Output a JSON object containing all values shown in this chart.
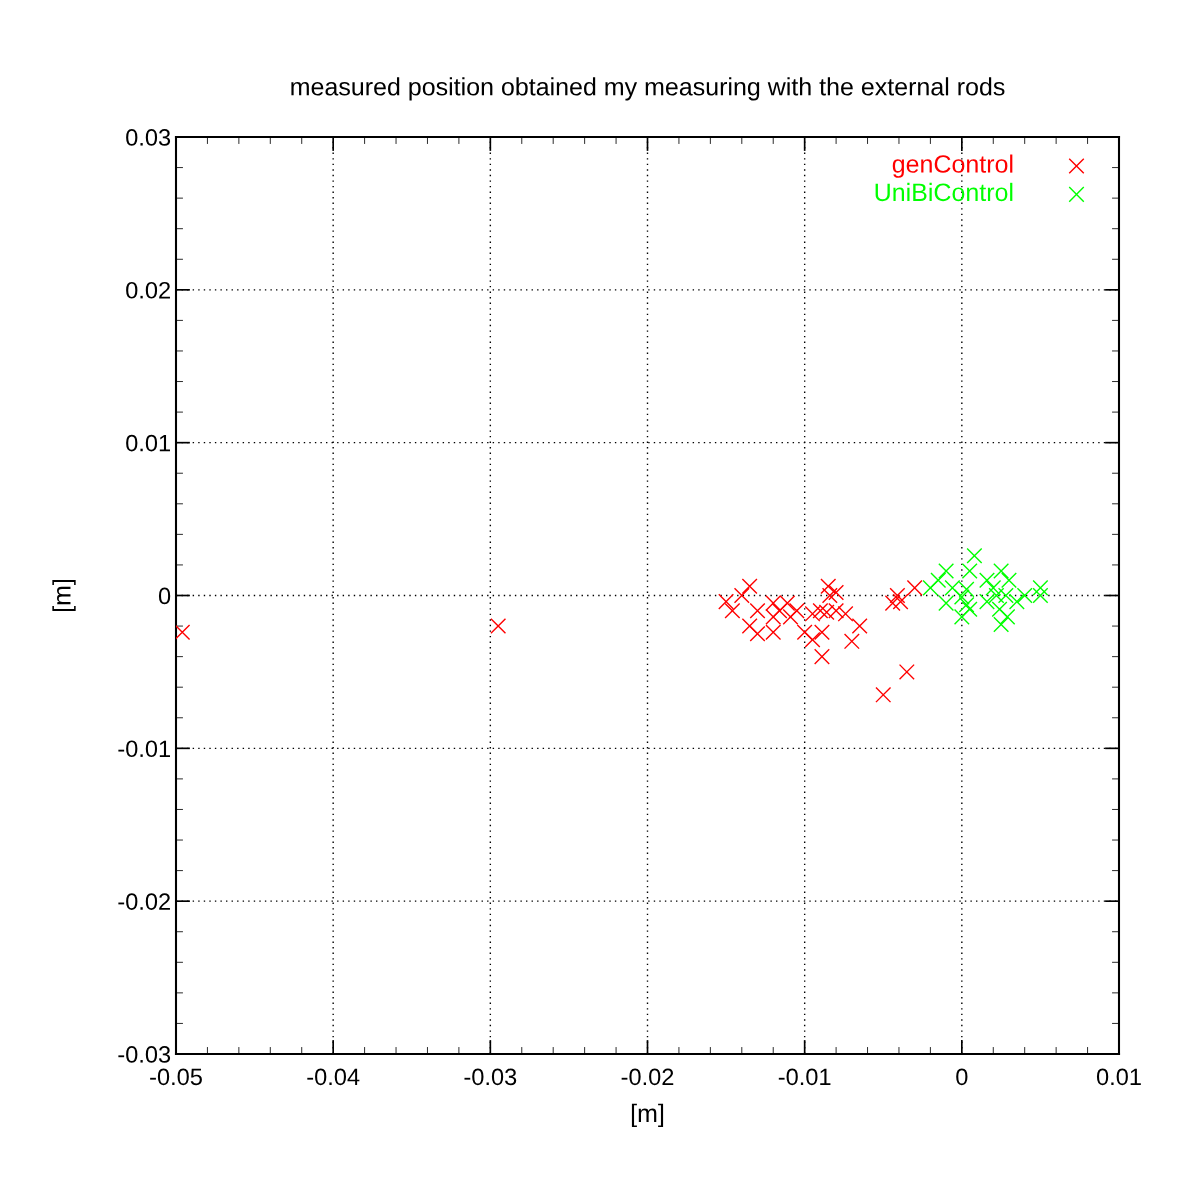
{
  "chart_data": {
    "type": "scatter",
    "title": "measured position obtained my measuring with the external rods",
    "xlabel": "[m]",
    "ylabel": "[m]",
    "xlim": [
      -0.05,
      0.01
    ],
    "ylim": [
      -0.03,
      0.03
    ],
    "xticks": [
      -0.05,
      -0.04,
      -0.03,
      -0.02,
      -0.01,
      {
        "value": 0,
        "label": "0"
      },
      0.01
    ],
    "yticks": [
      -0.03,
      -0.02,
      -0.01,
      {
        "value": 0,
        "label": "0"
      },
      0.01,
      0.02,
      0.03
    ],
    "grid": true,
    "legend": "top right",
    "marker": "cross",
    "series": [
      {
        "name": "genControl",
        "color": "#ff0000",
        "x": [
          -0.0496,
          -0.0295,
          -0.0135,
          -0.014,
          -0.015,
          -0.0146,
          -0.0135,
          -0.013,
          -0.013,
          -0.012,
          -0.012,
          -0.012,
          -0.0116,
          -0.0111,
          -0.0109,
          -0.0105,
          -0.01,
          -0.0095,
          -0.0089,
          -0.0089,
          -0.0095,
          -0.009,
          -0.0085,
          -0.0084,
          -0.008,
          -0.0086,
          -0.008,
          -0.0074,
          -0.007,
          -0.0065,
          -0.005,
          -0.0035,
          -0.003,
          -0.0041,
          -0.0044,
          -0.0039
        ],
        "values": [
          -0.0024,
          -0.002,
          0.0006,
          0.0,
          -0.0004,
          -0.001,
          -0.002,
          -0.0025,
          -0.001,
          -0.0005,
          -0.0014,
          -0.0024,
          -0.001,
          -0.0005,
          -0.0014,
          -0.001,
          -0.0024,
          -0.0029,
          -0.0024,
          -0.004,
          -0.0012,
          -0.001,
          0.0006,
          0.0,
          0.0002,
          -0.0011,
          -0.001,
          -0.0012,
          -0.003,
          -0.002,
          -0.0065,
          -0.005,
          0.0005,
          0.0,
          -0.0005,
          -0.0004
        ]
      },
      {
        "name": "UniBiControl",
        "color": "#00ff00",
        "x": [
          0.0008,
          0.0005,
          -0.001,
          -0.0015,
          -0.002,
          -0.0006,
          -0.001,
          0.0,
          0.0003,
          0.0003,
          0.0,
          0.0005,
          0.0016,
          0.002,
          0.0025,
          0.003,
          0.0016,
          0.0024,
          0.0029,
          0.0025,
          0.0028,
          0.0035,
          0.004,
          0.005,
          0.005,
          0.0022
        ],
        "values": [
          0.0026,
          0.0016,
          0.0016,
          0.001,
          0.0005,
          0.0005,
          -0.0005,
          -0.0001,
          0.0004,
          -0.0006,
          -0.0014,
          -0.0009,
          0.001,
          0.0005,
          0.0016,
          0.001,
          -0.0004,
          -0.0009,
          -0.0014,
          -0.0019,
          0.0,
          -0.0004,
          0.0,
          0.0005,
          0.0,
          0.0
        ]
      }
    ]
  }
}
